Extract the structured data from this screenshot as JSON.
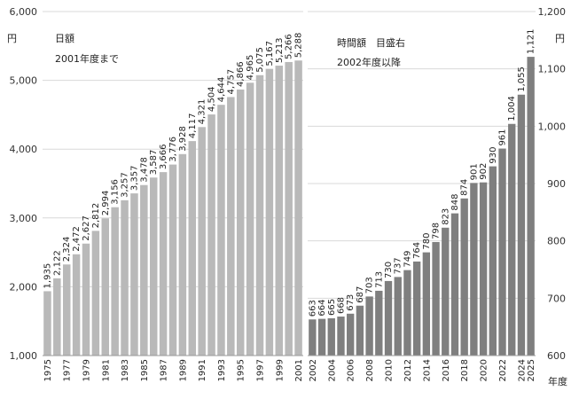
{
  "chart_data": [
    {
      "type": "bar",
      "label_lines": [
        "日額",
        "2001年度まで"
      ],
      "y_unit": "円",
      "ylim": [
        1000,
        6000
      ],
      "y_ticks": [
        "1,000",
        "2,000",
        "3,000",
        "4,000",
        "5,000",
        "6,000"
      ],
      "grid": true,
      "bar_color": "#b9b9b9",
      "categories": [
        "1975",
        "1976",
        "1977",
        "1978",
        "1979",
        "1980",
        "1981",
        "1982",
        "1983",
        "1984",
        "1985",
        "1986",
        "1987",
        "1988",
        "1989",
        "1990",
        "1991",
        "1992",
        "1993",
        "1994",
        "1995",
        "1996",
        "1997",
        "1998",
        "1999",
        "2000",
        "2001"
      ],
      "values": [
        1935,
        2122,
        2324,
        2472,
        2627,
        2812,
        2994,
        3156,
        3257,
        3357,
        3478,
        3587,
        3666,
        3776,
        3928,
        4117,
        4321,
        4504,
        4644,
        4757,
        4866,
        4965,
        5075,
        5167,
        5213,
        5266,
        5288
      ],
      "data_labels": [
        "1,935",
        "2,122",
        "2,324",
        "2,472",
        "2,627",
        "2,812",
        "2,994",
        "3,156",
        "3,257",
        "3,357",
        "3,478",
        "3,587",
        "3,666",
        "3,776",
        "3,928",
        "4,117",
        "4,321",
        "4,504",
        "4,644",
        "4,757",
        "4,866",
        "4,965",
        "5,075",
        "5,167",
        "5,213",
        "5,266",
        "5,288"
      ],
      "x_tick_labels": [
        "1975",
        "1977",
        "1979",
        "1981",
        "1983",
        "1985",
        "1987",
        "1989",
        "1991",
        "1993",
        "1995",
        "1997",
        "1999",
        "2001"
      ]
    },
    {
      "type": "bar",
      "label_lines": [
        "時間額　目盛右",
        "2002年度以降"
      ],
      "y_unit": "円",
      "x_unit": "年度",
      "ylim": [
        600,
        1200
      ],
      "y_ticks": [
        "600",
        "700",
        "800",
        "900",
        "1,000",
        "1,100",
        "1,200"
      ],
      "grid": true,
      "bar_color": "#7f7f7f",
      "categories": [
        "2002",
        "2003",
        "2004",
        "2005",
        "2006",
        "2007",
        "2008",
        "2009",
        "2010",
        "2011",
        "2012",
        "2013",
        "2014",
        "2015",
        "2016",
        "2017",
        "2018",
        "2019",
        "2020",
        "2021",
        "2022",
        "2023",
        "2024",
        "2025"
      ],
      "values": [
        663,
        664,
        665,
        668,
        673,
        687,
        703,
        713,
        730,
        737,
        749,
        764,
        780,
        798,
        823,
        848,
        874,
        901,
        902,
        930,
        961,
        1004,
        1055,
        1121
      ],
      "data_labels": [
        "663",
        "664",
        "665",
        "668",
        "673",
        "687",
        "703",
        "713",
        "730",
        "737",
        "749",
        "764",
        "780",
        "798",
        "823",
        "848",
        "874",
        "901",
        "902",
        "930",
        "961",
        "1,004",
        "1,055",
        "1,121"
      ],
      "x_tick_labels": [
        "2002",
        "2004",
        "2006",
        "2008",
        "2010",
        "2012",
        "2014",
        "2016",
        "2018",
        "2020",
        "2022",
        "2024",
        "2025"
      ]
    }
  ]
}
